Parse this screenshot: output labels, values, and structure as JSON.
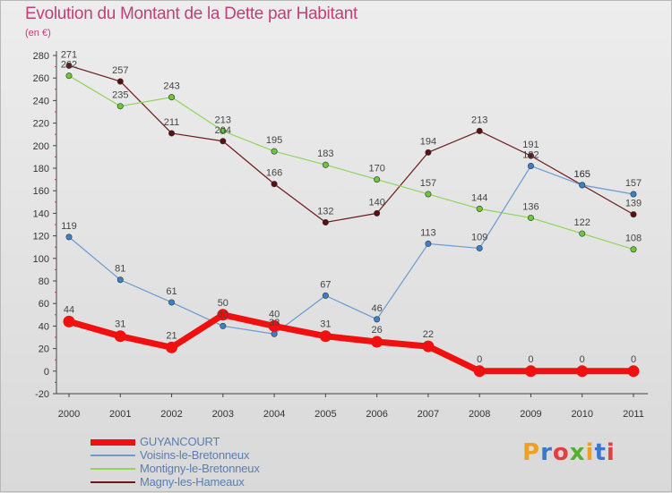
{
  "header": {
    "title": "Evolution du Montant de la Dette par Habitant",
    "subtitle": "(en €)"
  },
  "logo": {
    "text": "Proxiti",
    "colors": [
      "#f0a020",
      "#3a78c8",
      "#e04040",
      "#58b030",
      "#f0a020",
      "#3a78c8",
      "#e04040"
    ]
  },
  "chart_data": {
    "type": "line",
    "x": [
      "2000",
      "2001",
      "2002",
      "2003",
      "2004",
      "2005",
      "2006",
      "2007",
      "2008",
      "2009",
      "2010",
      "2011"
    ],
    "ylim": [
      -20,
      280
    ],
    "yticks": [
      "-20",
      "0",
      "20",
      "40",
      "60",
      "80",
      "100",
      "120",
      "140",
      "160",
      "180",
      "200",
      "220",
      "240",
      "260",
      "280"
    ],
    "grid": false,
    "legend_position": "bottom-left",
    "series": [
      {
        "name": "Magny-les-Hameaux",
        "color": "#6a1a1a",
        "point": "#5a1010",
        "width": 1.2,
        "values": [
          271,
          257,
          211,
          204,
          166,
          132,
          140,
          194,
          213,
          191,
          165,
          139
        ],
        "labels": [
          "271",
          "257",
          "211",
          "204",
          "166",
          "132",
          "140",
          "194",
          "213",
          "191",
          "165",
          "139"
        ]
      },
      {
        "name": "Montigny-le-Bretonneux",
        "color": "#8ed65a",
        "point": "#6cc83a",
        "width": 1.2,
        "values": [
          262,
          235,
          243,
          213,
          195,
          183,
          170,
          157,
          144,
          136,
          122,
          108
        ],
        "labels": [
          "262",
          "235",
          "243",
          "213",
          "195",
          "183",
          "170",
          "157",
          "144",
          "136",
          "122",
          "108"
        ]
      },
      {
        "name": "Voisins-le-Bretonneux",
        "color": "#6a9ad0",
        "point": "#3a82c8",
        "width": 1.2,
        "values": [
          119,
          81,
          61,
          40,
          33,
          67,
          46,
          113,
          109,
          182,
          165,
          157
        ],
        "labels": [
          "119",
          "81",
          "61",
          "40",
          "33",
          "67",
          "46",
          "113",
          "109",
          "182",
          "165",
          "157"
        ]
      },
      {
        "name": "GUYANCOURT",
        "color": "#f01010",
        "point": "#f01010",
        "width": 7,
        "values": [
          44,
          31,
          21,
          50,
          40,
          31,
          26,
          22,
          0,
          0,
          0,
          0
        ],
        "labels": [
          "44",
          "31",
          "21",
          "50",
          "40",
          "31",
          "26",
          "22",
          "0",
          "0",
          "0",
          "0"
        ]
      }
    ]
  },
  "legend": [
    {
      "label": "GUYANCOURT",
      "color": "#f01010",
      "thickness": 7
    },
    {
      "label": "Voisins-le-Bretonneux",
      "color": "#6a9ad0",
      "thickness": 2
    },
    {
      "label": "Montigny-le-Bretonneux",
      "color": "#8ed65a",
      "thickness": 2
    },
    {
      "label": "Magny-les-Hameaux",
      "color": "#6a1a1a",
      "thickness": 2
    }
  ]
}
